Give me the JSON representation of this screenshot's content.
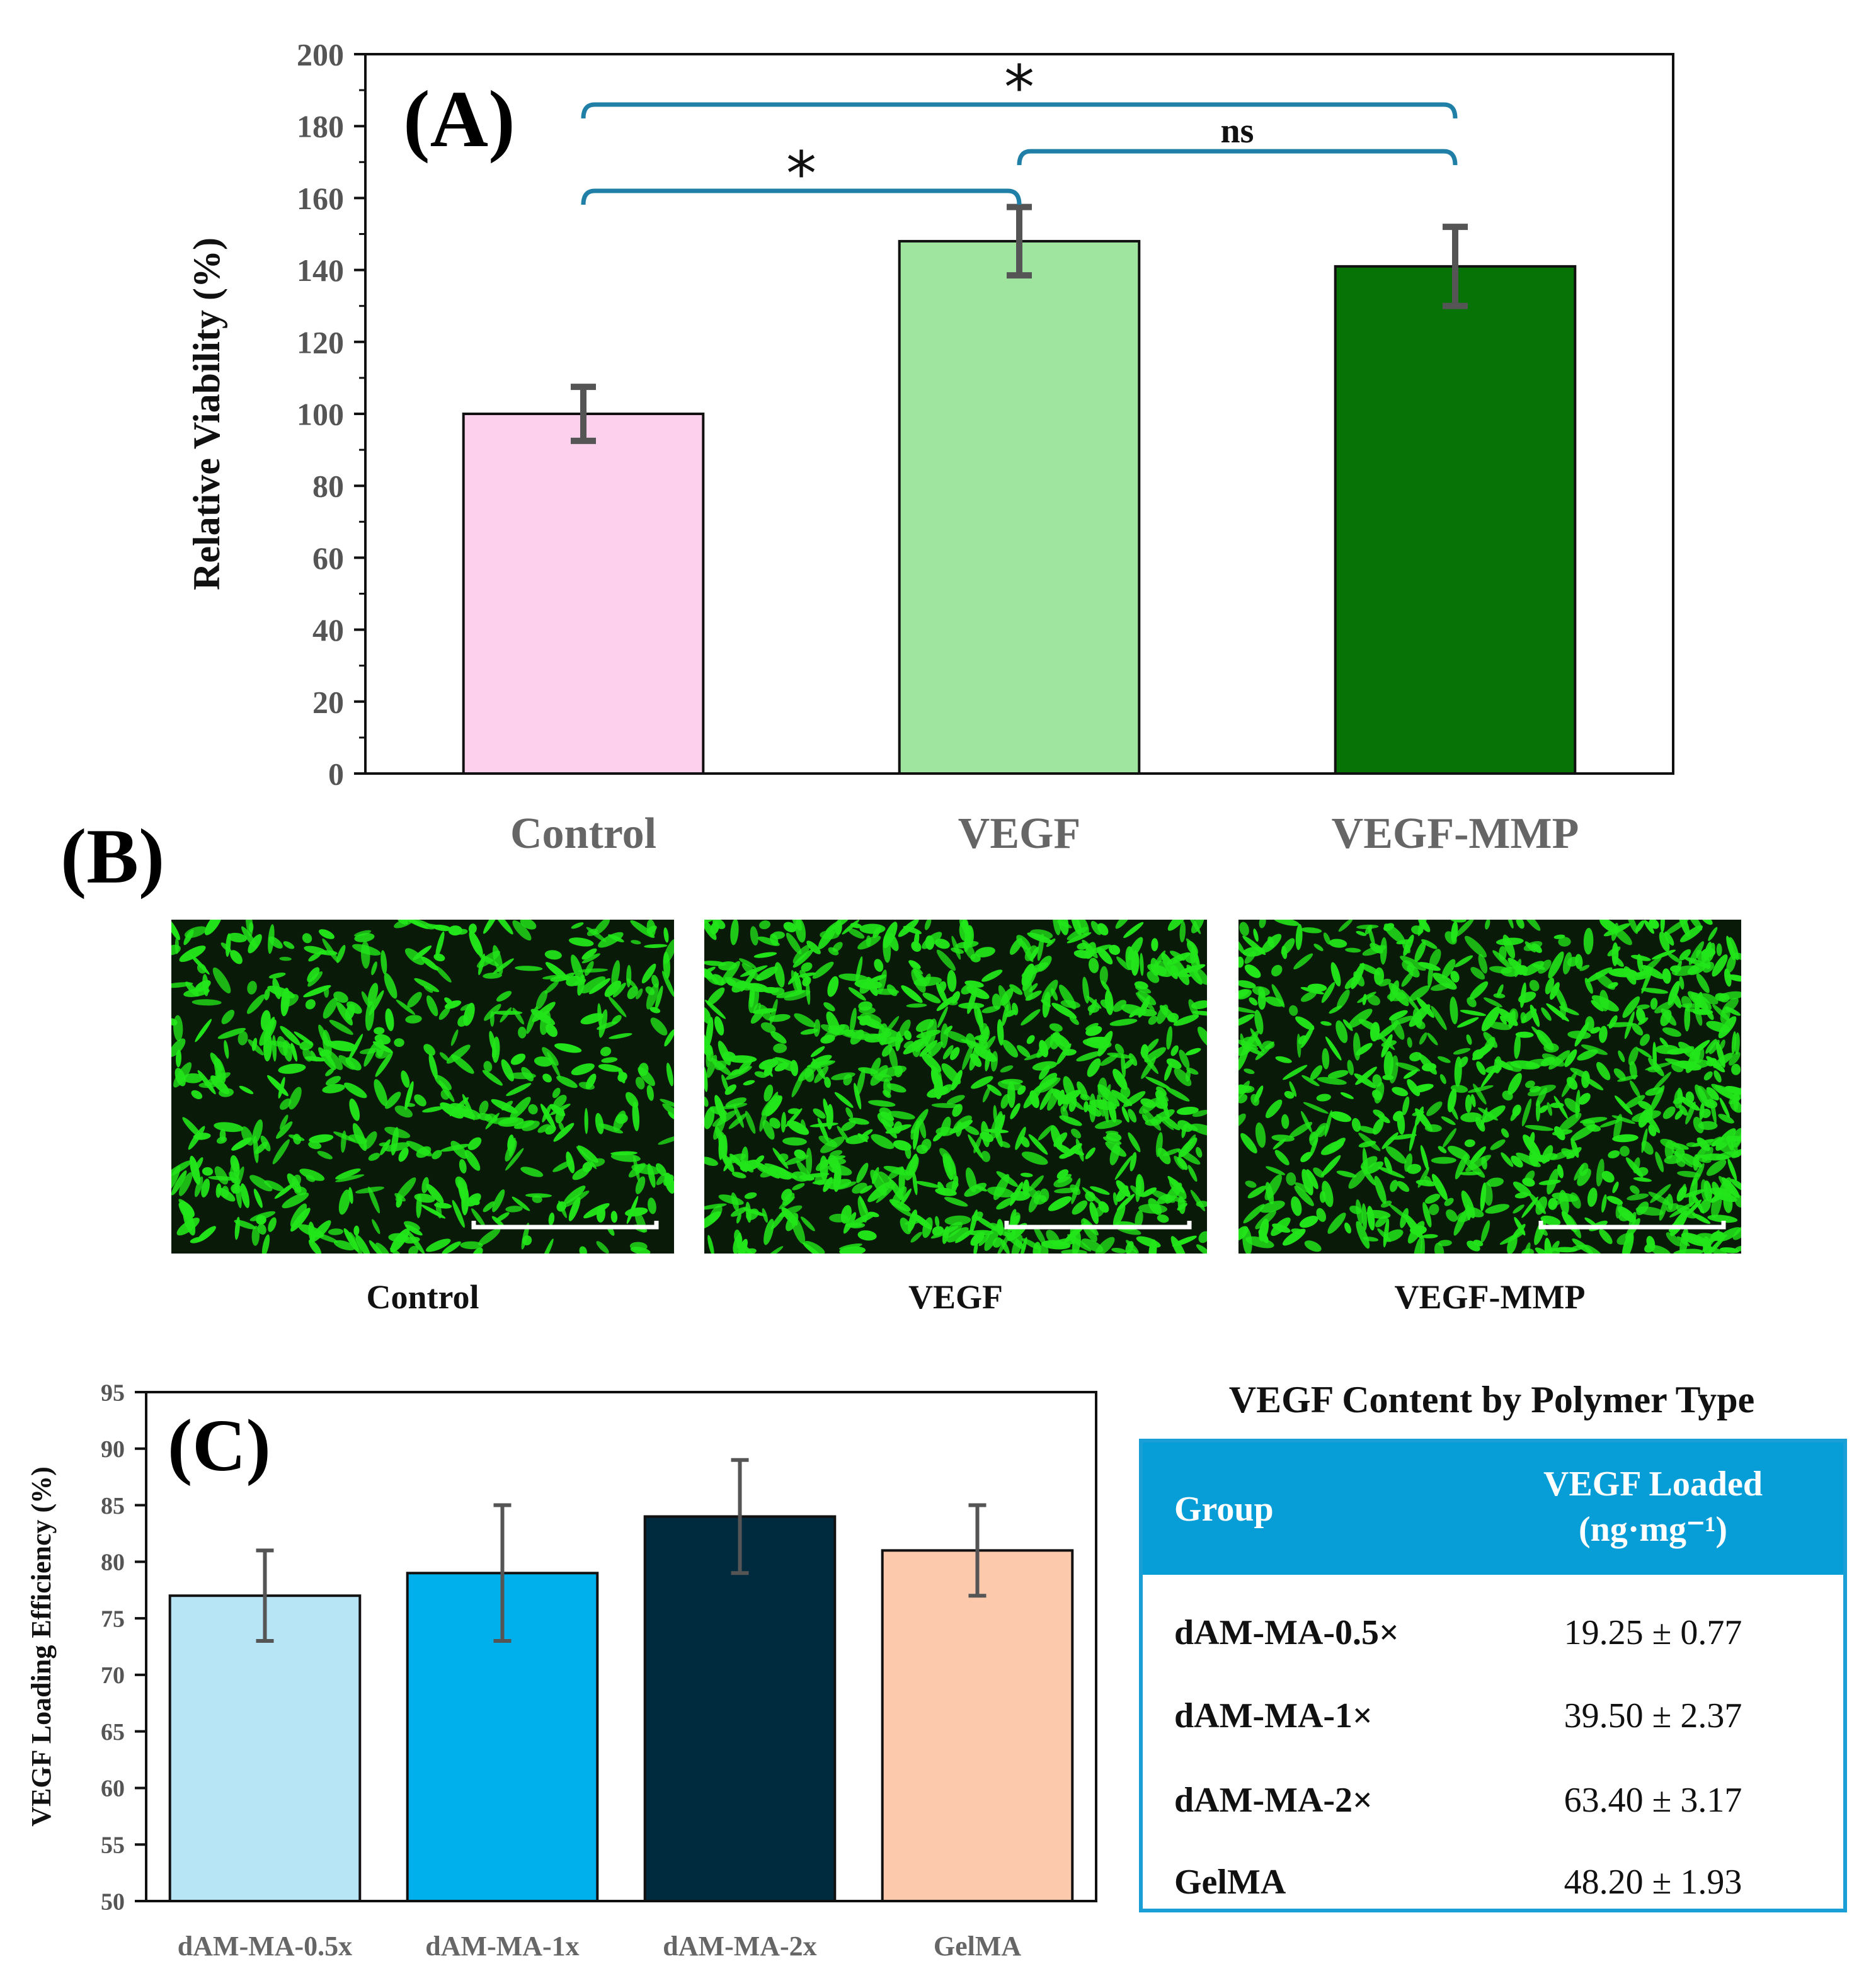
{
  "chart_data": [
    {
      "panel": "(A)",
      "type": "bar",
      "ylabel": "Relative Viability (%)",
      "xlabel": "",
      "ylim": [
        0,
        200
      ],
      "yticks": [
        0,
        20,
        40,
        60,
        80,
        100,
        120,
        140,
        160,
        180,
        200
      ],
      "categories": [
        "Control",
        "VEGF",
        "VEGF-MMP"
      ],
      "values": [
        100,
        148,
        141
      ],
      "errors": [
        7.5,
        9.5,
        11
      ],
      "colors": [
        "#fdd0ee",
        "#9fe59f",
        "#077307"
      ],
      "significance": [
        {
          "from": "Control",
          "to": "VEGF",
          "label": "*"
        },
        {
          "from": "Control",
          "to": "VEGF-MMP",
          "label": "*"
        },
        {
          "from": "VEGF",
          "to": "VEGF-MMP",
          "label": "ns"
        }
      ]
    },
    {
      "panel": "(C)",
      "type": "bar",
      "ylabel": "VEGF Loading Efficiency (%)",
      "xlabel": "",
      "ylim": [
        50,
        95
      ],
      "yticks": [
        50,
        55,
        60,
        65,
        70,
        75,
        80,
        85,
        90,
        95
      ],
      "categories": [
        "dAM-MA-0.5x",
        "dAM-MA-1x",
        "dAM-MA-2x",
        "GelMA"
      ],
      "values": [
        77,
        79,
        84,
        81
      ],
      "errors": [
        4,
        6,
        5,
        4
      ],
      "colors": [
        "#b7e5f6",
        "#00b0ec",
        "#002a3e",
        "#fdc9ad"
      ]
    }
  ],
  "panel_b": {
    "label": "(B)",
    "captions": [
      "Control",
      "VEGF",
      "VEGF-MMP"
    ]
  },
  "table": {
    "title": "VEGF Content by Polymer Type",
    "header_group": "Group",
    "header_loaded_1": "VEGF Loaded",
    "header_loaded_2": "(ng·mg⁻¹)",
    "rows": [
      {
        "group": "dAM-MA-0.5×",
        "value": "19.25 ± 0.77"
      },
      {
        "group": "dAM-MA-1×",
        "value": "39.50 ± 2.37"
      },
      {
        "group": "dAM-MA-2×",
        "value": "63.40 ± 3.17"
      },
      {
        "group": "GelMA",
        "value": "48.20 ± 1.93"
      }
    ]
  },
  "colors": {
    "bracket": "#1f7fa6",
    "error_bar": "#555555",
    "table_accent": "#079ed8",
    "cell_green": "#22e61a"
  }
}
